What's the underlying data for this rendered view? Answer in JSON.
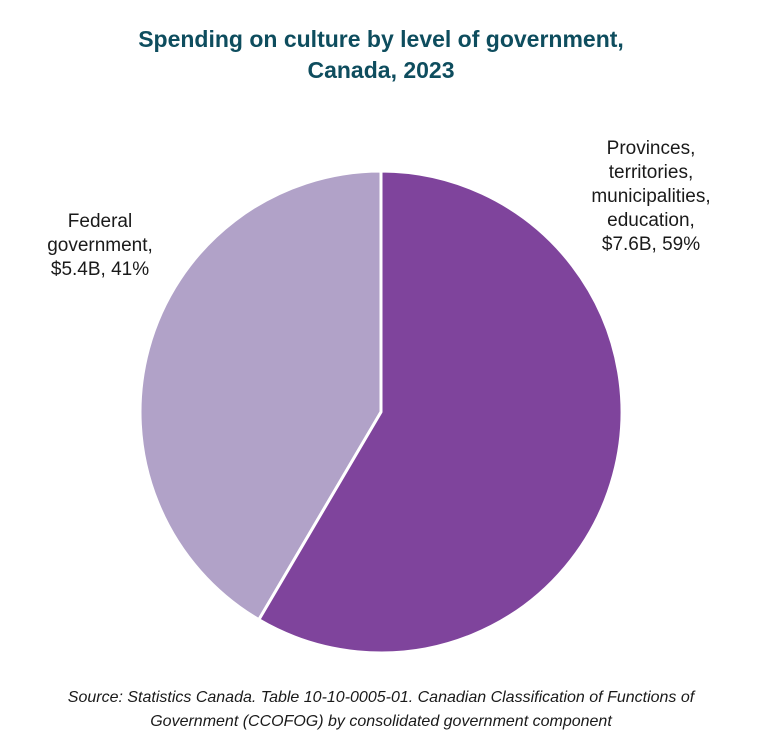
{
  "chart_data": {
    "type": "pie",
    "title": [
      "Spending on culture by level of government,",
      "Canada, 2023"
    ],
    "slices": [
      {
        "name": "Federal government",
        "label_lines": [
          "Federal",
          "government,",
          "$5.4B, 41%"
        ],
        "value": 5.4,
        "percent": 41,
        "color": "#b1a2c8"
      },
      {
        "name": "Provinces, territories, municipalities, education",
        "label_lines": [
          "Provinces,",
          "territories,",
          "municipalities,",
          "education,",
          "$7.6B, 59%"
        ],
        "value": 7.6,
        "percent": 59,
        "color": "#7f449c"
      }
    ],
    "legend": "none"
  },
  "source_lines": [
    "Source: Statistics Canada. Table 10-10-0005-01. Canadian Classification of Functions of",
    "Government (CCOFOG) by consolidated government component"
  ]
}
